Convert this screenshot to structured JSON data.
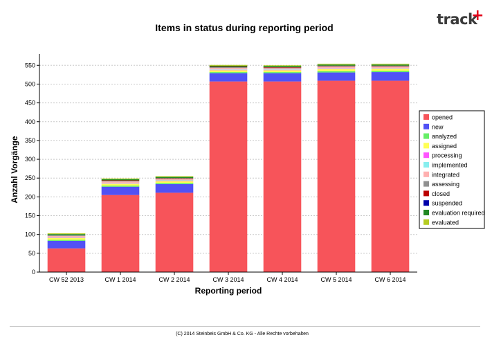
{
  "logo": {
    "text": "track",
    "plus": "+"
  },
  "footer": {
    "text": "(C) 2014 Steinbeis GmbH & Co. KG - Alle Rechte vorbehalten"
  },
  "chart_data": {
    "type": "bar",
    "stacked": true,
    "title": "Items in status during reporting period",
    "xlabel": "Reporting period",
    "ylabel": "Anzahl Vorgänge",
    "ylim": [
      0,
      580
    ],
    "yticks": [
      0,
      50,
      100,
      150,
      200,
      250,
      300,
      350,
      400,
      450,
      500,
      550
    ],
    "grid": true,
    "legend_position": "right",
    "categories": [
      "CW 52 2013",
      "CW 1 2014",
      "CW 2 2014",
      "CW 3 2014",
      "CW 4 2014",
      "CW 5 2014",
      "CW 6 2014"
    ],
    "series": [
      {
        "name": "opened",
        "color": "#f7545a",
        "values": [
          63,
          205,
          211,
          507,
          507,
          509,
          509
        ]
      },
      {
        "name": "new",
        "color": "#5151f5",
        "values": [
          20,
          22,
          23,
          22,
          22,
          22,
          23
        ]
      },
      {
        "name": "analyzed",
        "color": "#66ee66",
        "values": [
          3,
          3,
          3,
          3,
          3,
          3,
          3
        ]
      },
      {
        "name": "assigned",
        "color": "#ffff55",
        "values": [
          5,
          5,
          5,
          5,
          5,
          6,
          6
        ]
      },
      {
        "name": "processing",
        "color": "#ff55ff",
        "values": [
          1,
          1,
          1,
          1,
          1,
          1,
          1
        ]
      },
      {
        "name": "implemented",
        "color": "#88eeee",
        "values": [
          1,
          1,
          1,
          1,
          1,
          1,
          1
        ]
      },
      {
        "name": "integrated",
        "color": "#ffb0b0",
        "values": [
          3,
          4,
          3,
          4,
          3,
          4,
          3
        ]
      },
      {
        "name": "assessing",
        "color": "#909090",
        "values": [
          2,
          2,
          2,
          2,
          2,
          2,
          2
        ]
      },
      {
        "name": "closed",
        "color": "#bb0000",
        "values": [
          0,
          1,
          1,
          1,
          1,
          1,
          1
        ]
      },
      {
        "name": "suspended",
        "color": "#0000aa",
        "values": [
          0,
          0,
          0,
          0,
          0,
          0,
          0
        ]
      },
      {
        "name": "evaluation required",
        "color": "#228822",
        "values": [
          3,
          3,
          3,
          3,
          3,
          3,
          3
        ]
      },
      {
        "name": "evaluated",
        "color": "#b6cc22",
        "values": [
          2,
          2,
          2,
          2,
          2,
          2,
          2
        ]
      }
    ]
  }
}
